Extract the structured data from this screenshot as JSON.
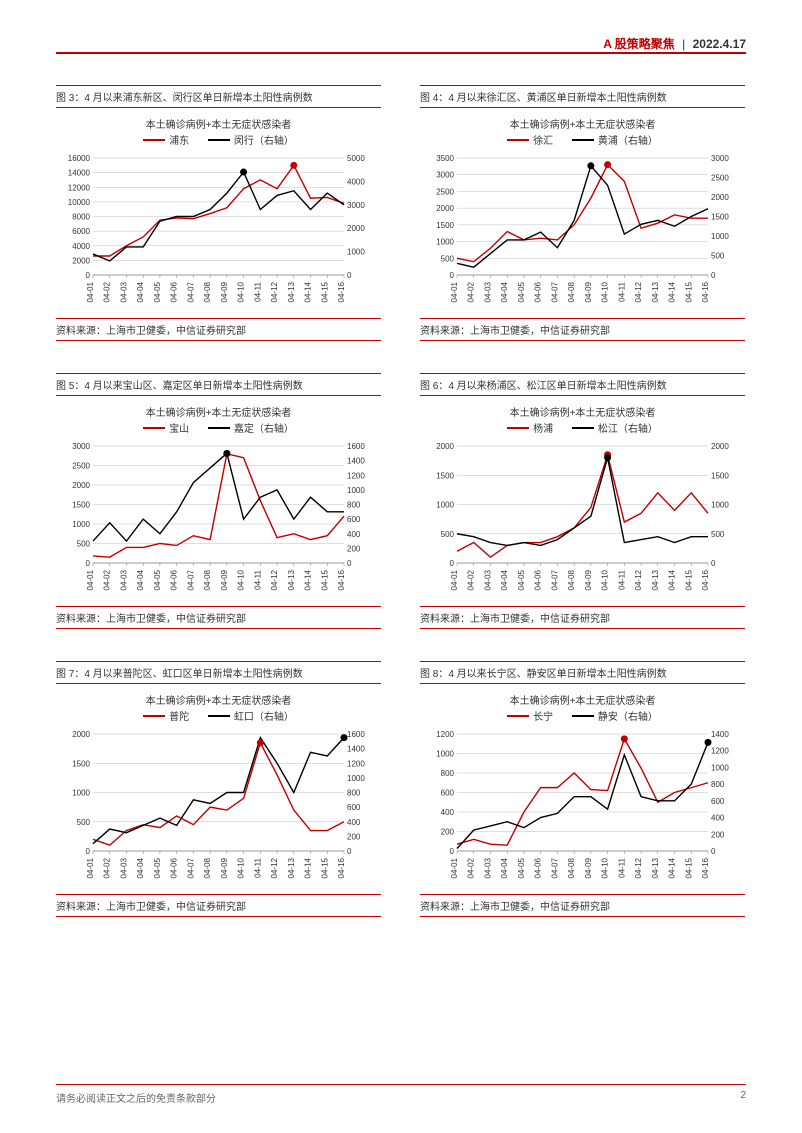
{
  "header": {
    "category": "A 股策略聚焦",
    "separator": "|",
    "date": "2022.4.17"
  },
  "footer": {
    "disclaimer": "请务必阅读正文之后的免责条款部分",
    "page": "2"
  },
  "common": {
    "subtitle": "本土确诊病例+本土无症状感染者",
    "source": "资料来源：上海市卫健委，中信证券研究部",
    "x_categories": [
      "04-01",
      "04-02",
      "04-03",
      "04-04",
      "04-05",
      "04-06",
      "04-07",
      "04-08",
      "04-09",
      "04-10",
      "04-11",
      "04-12",
      "04-13",
      "04-14",
      "04-15",
      "04-16"
    ],
    "colors": {
      "series1": "#c00000",
      "series2": "#000000",
      "grid": "#bfbfbf",
      "text": "#333333"
    },
    "label_fontsize": 8,
    "line_width": 1.4,
    "marker_radius": 3.5
  },
  "charts": [
    {
      "id": "fig3",
      "title": "图 3：4 月以来浦东新区、闵行区单日新增本土阳性病例数",
      "legend1": "浦东",
      "legend2": "闵行（右轴）",
      "left_ticks": [
        0,
        2000,
        4000,
        6000,
        8000,
        10000,
        12000,
        14000,
        16000
      ],
      "right_ticks": [
        0,
        1000,
        2000,
        3000,
        4000,
        5000
      ],
      "left_max": 16000,
      "right_max": 5000,
      "series1": [
        2600,
        2600,
        4000,
        5200,
        7500,
        7800,
        7700,
        8400,
        9200,
        11800,
        13000,
        11800,
        15000,
        10500,
        10600,
        9800
      ],
      "series2": [
        900,
        600,
        1200,
        1200,
        2300,
        2500,
        2500,
        2800,
        3500,
        4400,
        2800,
        3400,
        3600,
        2800,
        3500,
        3000
      ],
      "marker1_index": 12,
      "marker2_index": 9
    },
    {
      "id": "fig4",
      "title": "图 4：4 月以来徐汇区、黄浦区单日新增本土阳性病例数",
      "legend1": "徐汇",
      "legend2": "黄浦（右轴）",
      "left_ticks": [
        0,
        500,
        1000,
        1500,
        2000,
        2500,
        3000,
        3500
      ],
      "right_ticks": [
        0,
        500,
        1000,
        1500,
        2000,
        2500,
        3000
      ],
      "left_max": 3500,
      "right_max": 3000,
      "series1": [
        500,
        400,
        800,
        1300,
        1050,
        1100,
        1050,
        1500,
        2300,
        3300,
        2800,
        1400,
        1550,
        1800,
        1700,
        1700
      ],
      "series2": [
        300,
        200,
        550,
        900,
        900,
        1100,
        700,
        1400,
        2800,
        2300,
        1050,
        1300,
        1400,
        1250,
        1500,
        1700
      ],
      "marker1_index": 9,
      "marker2_index": 8
    },
    {
      "id": "fig5",
      "title": "图 5：4 月以来宝山区、嘉定区单日新增本土阳性病例数",
      "legend1": "宝山",
      "legend2": "嘉定（右轴）",
      "left_ticks": [
        0,
        500,
        1000,
        1500,
        2000,
        2500,
        3000
      ],
      "right_ticks": [
        0,
        200,
        400,
        600,
        800,
        1000,
        1200,
        1400,
        1600
      ],
      "left_max": 3000,
      "right_max": 1600,
      "series1": [
        180,
        150,
        400,
        400,
        500,
        450,
        700,
        600,
        2800,
        2700,
        1600,
        650,
        750,
        600,
        700,
        1200
      ],
      "series2": [
        300,
        550,
        300,
        600,
        400,
        700,
        1100,
        1300,
        1500,
        600,
        900,
        1000,
        600,
        900,
        700,
        700
      ],
      "marker1_index": 8,
      "marker2_index": 8
    },
    {
      "id": "fig6",
      "title": "图 6：4 月以来杨浦区、松江区单日新增本土阳性病例数",
      "legend1": "杨浦",
      "legend2": "松江（右轴）",
      "left_ticks": [
        0,
        500,
        1000,
        1500,
        2000
      ],
      "right_ticks": [
        0,
        500,
        1000,
        1500,
        2000
      ],
      "left_max": 2000,
      "right_max": 2000,
      "series1": [
        200,
        350,
        100,
        300,
        350,
        350,
        450,
        600,
        950,
        1850,
        700,
        850,
        1200,
        900,
        1200,
        850
      ],
      "series2": [
        500,
        450,
        350,
        300,
        350,
        300,
        400,
        600,
        800,
        1800,
        350,
        400,
        450,
        350,
        450,
        450
      ],
      "marker1_index": 9,
      "marker2_index": 9
    },
    {
      "id": "fig7",
      "title": "图 7：4 月以来普陀区、虹口区单日新增本土阳性病例数",
      "legend1": "普陀",
      "legend2": "虹口（右轴）",
      "left_ticks": [
        0,
        500,
        1000,
        1500,
        2000
      ],
      "right_ticks": [
        0,
        200,
        400,
        600,
        800,
        1000,
        1200,
        1400,
        1600
      ],
      "left_max": 2000,
      "right_max": 1600,
      "series1": [
        200,
        100,
        350,
        450,
        400,
        600,
        450,
        750,
        700,
        900,
        1850,
        1300,
        700,
        350,
        350,
        500
      ],
      "series2": [
        100,
        300,
        250,
        350,
        450,
        350,
        700,
        650,
        800,
        800,
        1550,
        1200,
        800,
        1350,
        1300,
        1550
      ],
      "marker1_index": 10,
      "marker2_index": 15
    },
    {
      "id": "fig8",
      "title": "图 8：4 月以来长宁区、静安区单日新增本土阳性病例数",
      "legend1": "长宁",
      "legend2": "静安（右轴）",
      "left_ticks": [
        0,
        200,
        400,
        600,
        800,
        1000,
        1200
      ],
      "right_ticks": [
        0,
        200,
        400,
        600,
        800,
        1000,
        1200,
        1400
      ],
      "left_max": 1200,
      "right_max": 1400,
      "series1": [
        70,
        120,
        70,
        60,
        400,
        650,
        650,
        800,
        630,
        620,
        1150,
        850,
        500,
        600,
        650,
        700
      ],
      "series2": [
        30,
        250,
        300,
        350,
        280,
        400,
        450,
        650,
        650,
        500,
        1150,
        650,
        600,
        600,
        800,
        1300
      ],
      "marker1_index": 10,
      "marker2_index": 15
    }
  ]
}
